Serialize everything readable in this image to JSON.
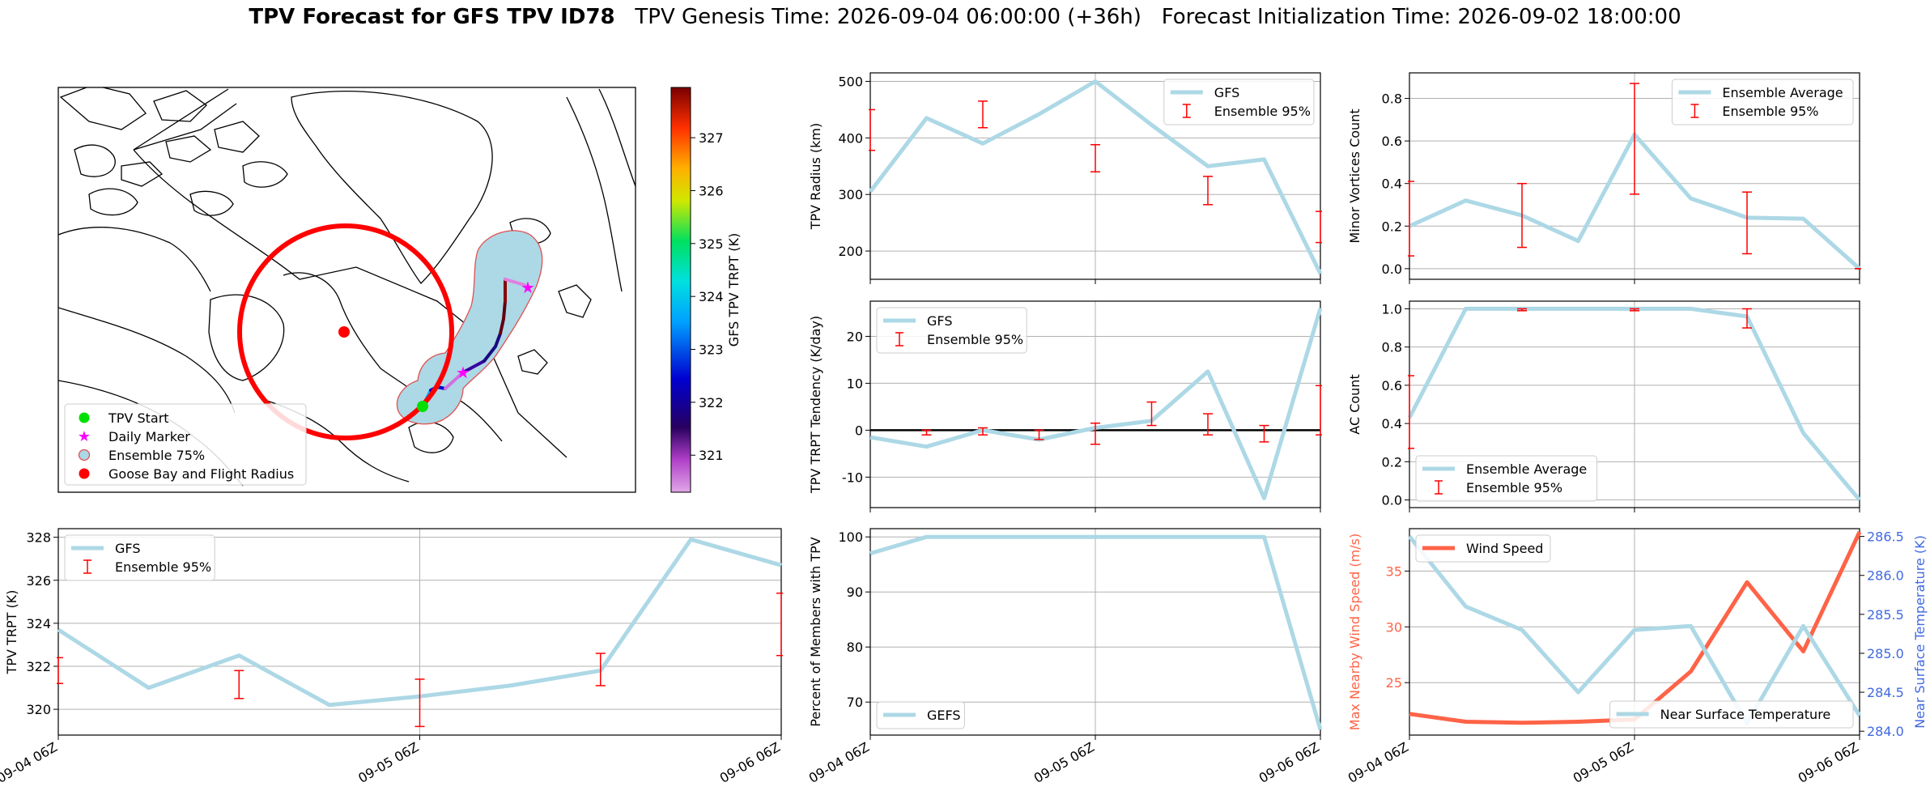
{
  "title": {
    "bold": "TPV Forecast for GFS TPV ID78",
    "genesis": "TPV Genesis Time: 2026-09-04 06:00:00 (+36h)",
    "init": "Forecast Initialization Time: 2026-09-02 18:00:00"
  },
  "colors": {
    "gfs_line": "#add8e6",
    "ensemble": "#ff0000",
    "wind": "#ff6347",
    "temp_axis": "#4169e1"
  },
  "map": {
    "colorbar": {
      "label": "GFS TPV TRPT (K)",
      "ticks": [
        321,
        322,
        323,
        324,
        325,
        326,
        327
      ],
      "range": [
        320.3,
        327.95
      ]
    },
    "legend": [
      "TPV Start",
      "Daily Marker",
      "Ensemble 75%",
      "Goose Bay and Flight Radius"
    ]
  },
  "chart_data": [
    {
      "id": "trpt",
      "type": "line",
      "ylabel": "TPV TRPT (K)",
      "xticks": [
        "09-04 06Z",
        "09-05 06Z",
        "09-06 06Z"
      ],
      "xlim": [
        0,
        8
      ],
      "ylim": [
        318.8,
        328.4
      ],
      "yticks": [
        320,
        322,
        324,
        326,
        328
      ],
      "series": [
        {
          "name": "GFS",
          "x": [
            0,
            1,
            2,
            3,
            4,
            5,
            6,
            7,
            8
          ],
          "values": [
            323.7,
            321.0,
            322.5,
            320.2,
            320.6,
            321.1,
            321.8,
            327.9,
            326.7
          ]
        }
      ],
      "ensemble": {
        "name": "Ensemble 95%",
        "x": [
          0,
          2,
          4,
          6,
          8
        ],
        "low": [
          321.2,
          320.5,
          319.2,
          321.1,
          322.5
        ],
        "high": [
          322.4,
          321.8,
          321.4,
          322.6,
          325.4
        ]
      },
      "legend": "upper-left"
    },
    {
      "id": "radius",
      "type": "line",
      "ylabel": "TPV Radius (km)",
      "xlim": [
        0,
        8
      ],
      "ylim": [
        150,
        515
      ],
      "yticks": [
        200,
        300,
        400,
        500
      ],
      "series": [
        {
          "name": "GFS",
          "x": [
            0,
            1,
            2,
            3,
            4,
            5,
            6,
            7,
            8
          ],
          "values": [
            305,
            435,
            390,
            442,
            500,
            423,
            350,
            362,
            160
          ]
        }
      ],
      "ensemble": {
        "name": "Ensemble 95%",
        "x": [
          0,
          2,
          4,
          6,
          8
        ],
        "low": [
          378,
          418,
          340,
          282,
          215
        ],
        "high": [
          450,
          465,
          388,
          332,
          270
        ]
      },
      "legend": "upper-right"
    },
    {
      "id": "tendency",
      "type": "line",
      "ylabel": "TPV TRPT Tendency (K/day)",
      "xlim": [
        0,
        8
      ],
      "ylim": [
        -16.5,
        27.5
      ],
      "yticks": [
        -10,
        0,
        10,
        20
      ],
      "zero_line": true,
      "series": [
        {
          "name": "GFS",
          "x": [
            0,
            1,
            2,
            3,
            4,
            5,
            6,
            7,
            8
          ],
          "values": [
            -1.5,
            -3.5,
            0,
            -2,
            0.5,
            2,
            12.5,
            -14.5,
            26
          ]
        }
      ],
      "ensemble": {
        "name": "Ensemble 95%",
        "x": [
          1,
          2,
          3,
          4,
          5,
          6,
          7,
          8
        ],
        "low": [
          -1,
          -1,
          -2,
          -3,
          1,
          -1,
          -2.5,
          -1
        ],
        "high": [
          0,
          0.5,
          0,
          1.5,
          6,
          3.5,
          1,
          9.5
        ]
      },
      "legend": "upper-left"
    },
    {
      "id": "members",
      "type": "line",
      "ylabel": "Percent of Members with TPV",
      "xticks": [
        "09-04 06Z",
        "09-05 06Z",
        "09-06 06Z"
      ],
      "xlim": [
        0,
        8
      ],
      "ylim": [
        64,
        101.5
      ],
      "yticks": [
        70,
        80,
        90,
        100
      ],
      "series": [
        {
          "name": "GEFS",
          "x": [
            0,
            1,
            2,
            3,
            4,
            5,
            6,
            7,
            8
          ],
          "values": [
            97,
            100,
            100,
            100,
            100,
            100,
            100,
            100,
            65
          ]
        }
      ],
      "legend": "lower-left"
    },
    {
      "id": "minor",
      "type": "line",
      "ylabel": "Minor Vortices Count",
      "xlim": [
        0,
        8
      ],
      "ylim": [
        -0.05,
        0.92
      ],
      "yticks": [
        0.0,
        0.2,
        0.4,
        0.6,
        0.8
      ],
      "series": [
        {
          "name": "Ensemble Average",
          "x": [
            0,
            1,
            2,
            3,
            4,
            5,
            6,
            7,
            8
          ],
          "values": [
            0.2,
            0.32,
            0.25,
            0.13,
            0.63,
            0.33,
            0.24,
            0.235,
            0.0
          ]
        }
      ],
      "ensemble": {
        "name": "Ensemble 95%",
        "x": [
          0,
          2,
          4,
          6,
          8
        ],
        "low": [
          0.06,
          0.1,
          0.35,
          0.07,
          0.0
        ],
        "high": [
          0.41,
          0.4,
          0.87,
          0.36,
          0.0
        ]
      },
      "legend": "upper-right"
    },
    {
      "id": "ac",
      "type": "line",
      "ylabel": "AC Count",
      "xlim": [
        0,
        8
      ],
      "ylim": [
        -0.04,
        1.04
      ],
      "yticks": [
        0.0,
        0.2,
        0.4,
        0.6,
        0.8,
        1.0
      ],
      "series": [
        {
          "name": "Ensemble Average",
          "x": [
            0,
            1,
            2,
            3,
            4,
            5,
            6,
            7,
            8
          ],
          "values": [
            0.43,
            1.0,
            1.0,
            1.0,
            1.0,
            1.0,
            0.96,
            0.35,
            0.0
          ]
        }
      ],
      "ensemble": {
        "name": "Ensemble 95%",
        "x": [
          0,
          2,
          4,
          6
        ],
        "low": [
          0.27,
          0.99,
          0.99,
          0.9
        ],
        "high": [
          0.65,
          1.0,
          1.0,
          1.0
        ]
      },
      "legend": "lower-left"
    },
    {
      "id": "wind",
      "type": "line",
      "ylabel": "Max Nearby Wind Speed (m/s)",
      "y2label": "Near Surface Temperature (K)",
      "xticks": [
        "09-04 06Z",
        "09-05 06Z",
        "09-06 06Z"
      ],
      "xlim": [
        0,
        8
      ],
      "ylim": [
        20.3,
        38.8
      ],
      "yticks": [
        25,
        30,
        35
      ],
      "y2lim": [
        283.95,
        286.6
      ],
      "y2ticks": [
        284.0,
        284.5,
        285.0,
        285.5,
        286.0,
        286.5
      ],
      "series": [
        {
          "name": "Wind Speed",
          "x": [
            0,
            1,
            2,
            3,
            4,
            5,
            6,
            7,
            8
          ],
          "values": [
            22.2,
            21.5,
            21.4,
            21.5,
            21.7,
            26.0,
            34.0,
            27.8,
            38.5
          ]
        },
        {
          "name": "Near Surface Temperature",
          "axis": "right",
          "x": [
            0,
            1,
            2,
            3,
            4,
            5,
            6,
            7,
            8
          ],
          "values": [
            286.5,
            285.6,
            285.3,
            284.5,
            285.3,
            285.35,
            284.1,
            285.35,
            284.2
          ]
        }
      ]
    }
  ]
}
